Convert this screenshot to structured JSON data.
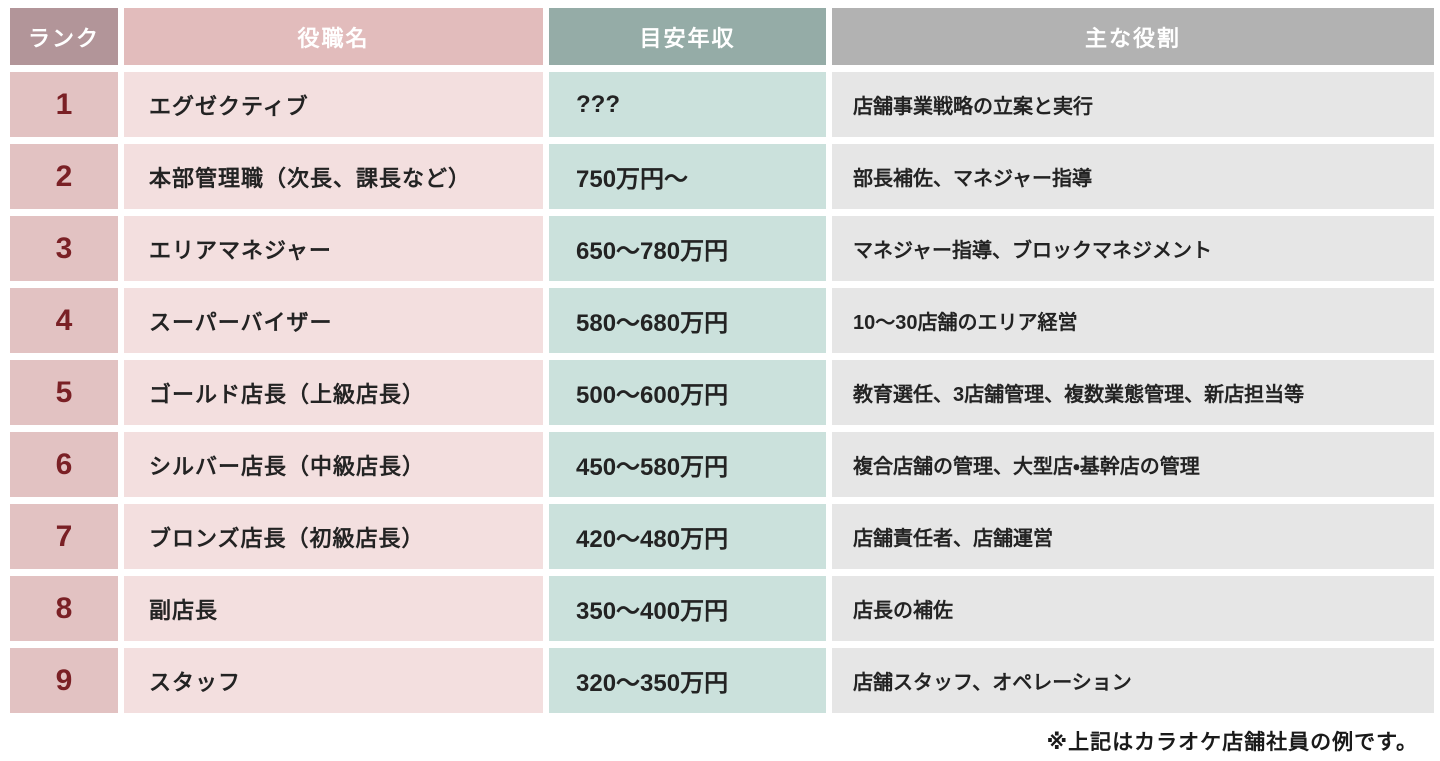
{
  "table": {
    "headers": {
      "rank": "ランク",
      "title": "役職名",
      "salary": "目安年収",
      "role": "主な役割"
    },
    "rows": [
      {
        "rank": "1",
        "title": "エグゼクティブ",
        "salary": "???",
        "role": "店舗事業戦略の立案と実行"
      },
      {
        "rank": "2",
        "title": "本部管理職（次長、課長など）",
        "salary": "750万円〜",
        "role": "部長補佐、マネジャー指導"
      },
      {
        "rank": "3",
        "title": "エリアマネジャー",
        "salary": "650〜780万円",
        "role": "マネジャー指導、ブロックマネジメント"
      },
      {
        "rank": "4",
        "title": "スーパーバイザー",
        "salary": "580〜680万円",
        "role": "10〜30店舗のエリア経営"
      },
      {
        "rank": "5",
        "title": "ゴールド店長（上級店長）",
        "salary": "500〜600万円",
        "role": "教育選任、3店舗管理、複数業態管理、新店担当等"
      },
      {
        "rank": "6",
        "title": "シルバー店長（中級店長）",
        "salary": "450〜580万円",
        "role": "複合店舗の管理、大型店・基幹店の管理"
      },
      {
        "rank": "7",
        "title": "ブロンズ店長（初級店長）",
        "salary": "420〜480万円",
        "role": "店舗責任者、店舗運営"
      },
      {
        "rank": "8",
        "title": "副店長",
        "salary": "350〜400万円",
        "role": "店長の補佐"
      },
      {
        "rank": "9",
        "title": "スタッフ",
        "salary": "320〜350万円",
        "role": "店舗スタッフ、オペレーション"
      }
    ]
  },
  "footnote": "※上記はカラオケ店舗社員の例です。",
  "colors": {
    "header_rank_bg": "#b29599",
    "header_title_bg": "#e2bcbc",
    "header_salary_bg": "#95aca7",
    "header_role_bg": "#b2b2b2",
    "cell_rank_bg": "#e2c2c2",
    "cell_title_bg": "#f3dfdf",
    "cell_salary_bg": "#cbe1dc",
    "cell_role_bg": "#e6e6e6",
    "rank_number_text": "#7a2025",
    "body_text": "#232323",
    "header_text": "#ffffff"
  }
}
